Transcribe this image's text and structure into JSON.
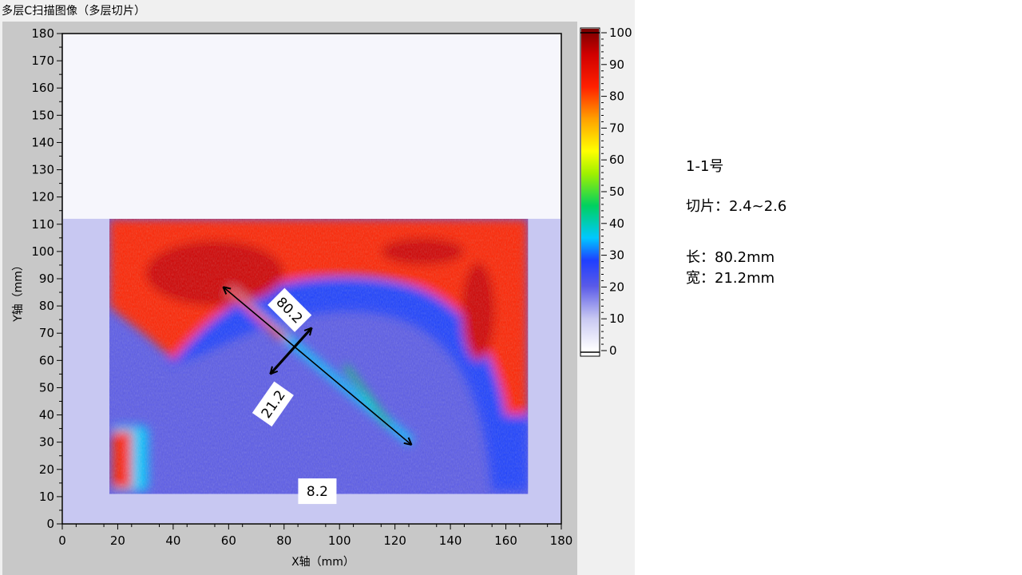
{
  "panel": {
    "title": "多层C扫描图像（多层切片）"
  },
  "chart_data": {
    "type": "heatmap",
    "xlabel": "X轴（mm）",
    "ylabel": "Y轴（mm）",
    "xlim": [
      0,
      180
    ],
    "ylim": [
      0,
      180
    ],
    "xticks": [
      0,
      20,
      40,
      60,
      80,
      100,
      120,
      140,
      160,
      180
    ],
    "yticks": [
      0,
      10,
      20,
      30,
      40,
      50,
      60,
      70,
      80,
      90,
      100,
      110,
      120,
      130,
      140,
      150,
      160,
      170,
      180
    ],
    "scan_region": {
      "x": [
        0,
        180
      ],
      "y": [
        0,
        112
      ]
    },
    "specimen_region": {
      "x": [
        17,
        168
      ],
      "y": [
        11,
        112
      ]
    },
    "colorbar": {
      "range": [
        0,
        100
      ],
      "ticks": [
        0,
        10,
        20,
        30,
        40,
        50,
        60,
        70,
        80,
        90,
        100
      ],
      "stops": [
        {
          "v": 0,
          "color": "#ffffff"
        },
        {
          "v": 10,
          "color": "#c8c8f2"
        },
        {
          "v": 20,
          "color": "#5a5ae8"
        },
        {
          "v": 28,
          "color": "#1f3fff"
        },
        {
          "v": 35,
          "color": "#00c8ff"
        },
        {
          "v": 45,
          "color": "#00d060"
        },
        {
          "v": 55,
          "color": "#a0f000"
        },
        {
          "v": 62,
          "color": "#ffff00"
        },
        {
          "v": 72,
          "color": "#ffa000"
        },
        {
          "v": 82,
          "color": "#ff2000"
        },
        {
          "v": 92,
          "color": "#d00000"
        },
        {
          "v": 100,
          "color": "#780000"
        }
      ]
    },
    "annotations": [
      {
        "label": "80.2",
        "from": [
          58,
          87
        ],
        "to": [
          126,
          29
        ]
      },
      {
        "label": "21.2",
        "from": [
          90,
          72
        ],
        "to": [
          75,
          55
        ]
      },
      {
        "label": "8.2",
        "at": [
          92,
          12
        ]
      }
    ]
  },
  "notes": {
    "specimen": "1-1号",
    "slice": "切片：2.4~2.6",
    "length": "长：80.2mm",
    "width": "宽：21.2mm"
  }
}
